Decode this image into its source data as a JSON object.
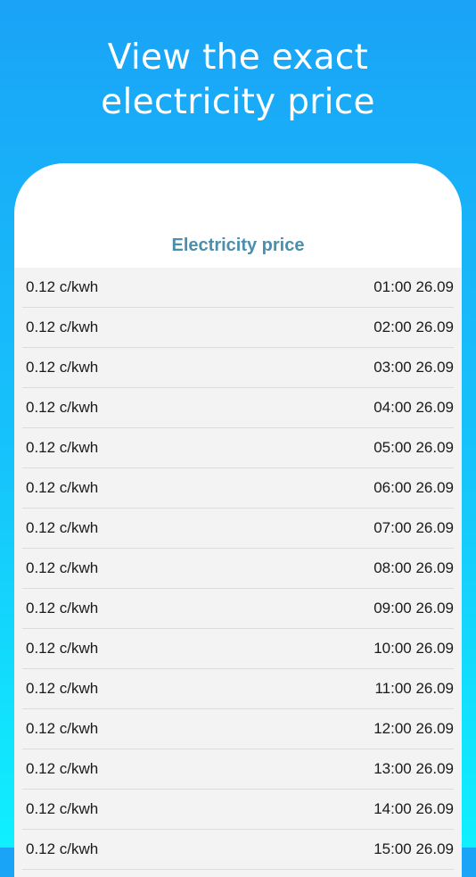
{
  "headline": "View the exact electricity price",
  "card_title": "Electricity price",
  "rows": [
    {
      "price": "0.12 c/kwh",
      "time": "01:00 26.09"
    },
    {
      "price": "0.12 c/kwh",
      "time": "02:00 26.09"
    },
    {
      "price": "0.12 c/kwh",
      "time": "03:00 26.09"
    },
    {
      "price": "0.12 c/kwh",
      "time": "04:00 26.09"
    },
    {
      "price": "0.12 c/kwh",
      "time": "05:00 26.09"
    },
    {
      "price": "0.12 c/kwh",
      "time": "06:00 26.09"
    },
    {
      "price": "0.12 c/kwh",
      "time": "07:00 26.09"
    },
    {
      "price": "0.12 c/kwh",
      "time": "08:00 26.09"
    },
    {
      "price": "0.12 c/kwh",
      "time": "09:00 26.09"
    },
    {
      "price": "0.12 c/kwh",
      "time": "10:00 26.09"
    },
    {
      "price": "0.12 c/kwh",
      "time": "11:00 26.09"
    },
    {
      "price": "0.12 c/kwh",
      "time": "12:00 26.09"
    },
    {
      "price": "0.12 c/kwh",
      "time": "13:00 26.09"
    },
    {
      "price": "0.12 c/kwh",
      "time": "14:00 26.09"
    },
    {
      "price": "0.12 c/kwh",
      "time": "15:00 26.09"
    }
  ]
}
